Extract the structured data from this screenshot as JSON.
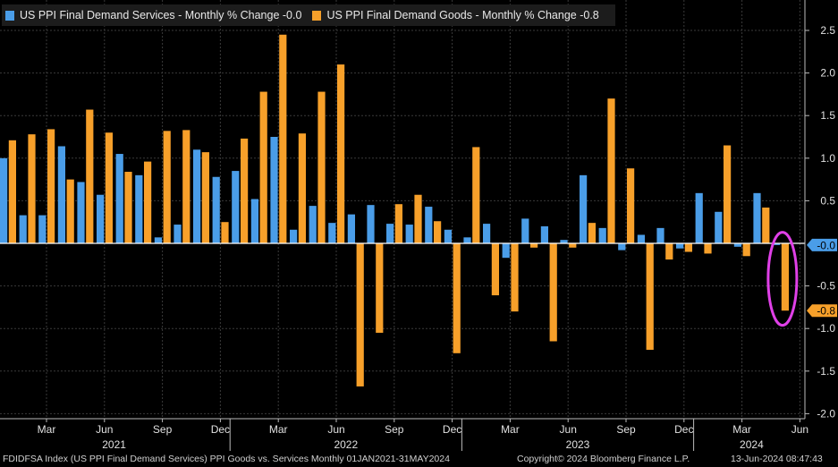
{
  "legend": {
    "services_label": "US PPI Final Demand Services - Monthly % Change",
    "services_value": "-0.0",
    "goods_label": "US PPI Final Demand Goods - Monthly % Change",
    "goods_value": "-0.8"
  },
  "footer": {
    "left": "FDIDFSA Index (US PPI Final Demand Services) PPI Goods vs. Services  Monthly 01JAN2021-31MAY2024",
    "center": "Copyright© 2024 Bloomberg Finance L.P.",
    "right": "13-Jun-2024 08:47:43"
  },
  "colors": {
    "services": "#4a9de8",
    "goods": "#f7a02a",
    "background": "#000000",
    "grid": "#3a3a3a",
    "annotation_circle": "#e040e8"
  },
  "chart_data": {
    "type": "bar",
    "categories": [
      "Jan 2021",
      "Feb 2021",
      "Mar 2021",
      "Apr 2021",
      "May 2021",
      "Jun 2021",
      "Jul 2021",
      "Aug 2021",
      "Sep 2021",
      "Oct 2021",
      "Nov 2021",
      "Dec 2021",
      "Jan 2022",
      "Feb 2022",
      "Mar 2022",
      "Apr 2022",
      "May 2022",
      "Jun 2022",
      "Jul 2022",
      "Aug 2022",
      "Sep 2022",
      "Oct 2022",
      "Nov 2022",
      "Dec 2022",
      "Jan 2023",
      "Feb 2023",
      "Mar 2023",
      "Apr 2023",
      "May 2023",
      "Jun 2023",
      "Jul 2023",
      "Aug 2023",
      "Sep 2023",
      "Oct 2023",
      "Nov 2023",
      "Dec 2023",
      "Jan 2024",
      "Feb 2024",
      "Mar 2024",
      "Apr 2024",
      "May 2024"
    ],
    "series": [
      {
        "name": "US PPI Final Demand Services - Monthly % Change",
        "color": "#4a9de8",
        "values": [
          1.0,
          0.33,
          0.33,
          1.14,
          0.72,
          0.57,
          1.05,
          0.8,
          0.07,
          0.22,
          1.1,
          0.78,
          0.85,
          0.52,
          1.25,
          0.16,
          0.44,
          0.24,
          0.34,
          0.45,
          0.23,
          0.22,
          0.43,
          0.16,
          0.07,
          0.23,
          -0.17,
          0.29,
          0.2,
          0.04,
          0.8,
          0.18,
          -0.08,
          0.1,
          0.18,
          -0.06,
          0.59,
          0.37,
          -0.04,
          0.59,
          -0.02
        ]
      },
      {
        "name": "US PPI Final Demand Goods - Monthly % Change",
        "color": "#f7a02a",
        "values": [
          1.21,
          1.28,
          1.34,
          0.75,
          1.57,
          1.3,
          0.84,
          0.96,
          1.32,
          1.33,
          1.07,
          0.25,
          1.23,
          1.78,
          2.45,
          1.29,
          1.78,
          2.1,
          -1.68,
          -1.05,
          0.46,
          0.57,
          0.26,
          -1.29,
          1.13,
          -0.61,
          -0.8,
          -0.05,
          -1.15,
          -0.05,
          0.24,
          1.7,
          0.88,
          -1.25,
          -0.19,
          -0.1,
          -0.12,
          1.15,
          -0.15,
          0.42,
          -0.79
        ]
      }
    ],
    "x_tick_labels": [
      {
        "month": "Mar",
        "index": 2
      },
      {
        "month": "Jun",
        "index": 5
      },
      {
        "month": "Sep",
        "index": 8
      },
      {
        "month": "Dec",
        "index": 11
      },
      {
        "month": "Mar",
        "index": 14
      },
      {
        "month": "Jun",
        "index": 17
      },
      {
        "month": "Sep",
        "index": 20
      },
      {
        "month": "Dec",
        "index": 23
      },
      {
        "month": "Mar",
        "index": 26
      },
      {
        "month": "Jun",
        "index": 29
      },
      {
        "month": "Sep",
        "index": 32
      },
      {
        "month": "Dec",
        "index": 35
      },
      {
        "month": "Mar",
        "index": 38
      },
      {
        "month": "Jun",
        "index": 41
      }
    ],
    "year_labels": [
      {
        "year": "2021",
        "center_index": 5.5
      },
      {
        "year": "2022",
        "center_index": 17.5
      },
      {
        "year": "2023",
        "center_index": 29.5
      },
      {
        "year": "2024",
        "center_index": 38.5
      }
    ],
    "year_separator_indices": [
      11.5,
      23.5,
      35.5
    ],
    "y_ticks": [
      2.5,
      2.0,
      1.5,
      1.0,
      0.5,
      -0.5,
      -1.0,
      -1.5,
      -2.0
    ],
    "y_tick_labels": [
      "2.5",
      "2.0",
      "1.5",
      "1.0",
      "0.5",
      "-0.5",
      "-1.0",
      "-1.5",
      "-2.0"
    ],
    "ylim": [
      -2.1,
      2.75
    ],
    "last_value_labels": [
      {
        "series": 0,
        "value": -0.02,
        "text": "-0.0"
      },
      {
        "series": 1,
        "value": -0.79,
        "text": "-0.8"
      }
    ],
    "grid": true,
    "y_axis_position": "right",
    "legend_position": "top-left"
  }
}
